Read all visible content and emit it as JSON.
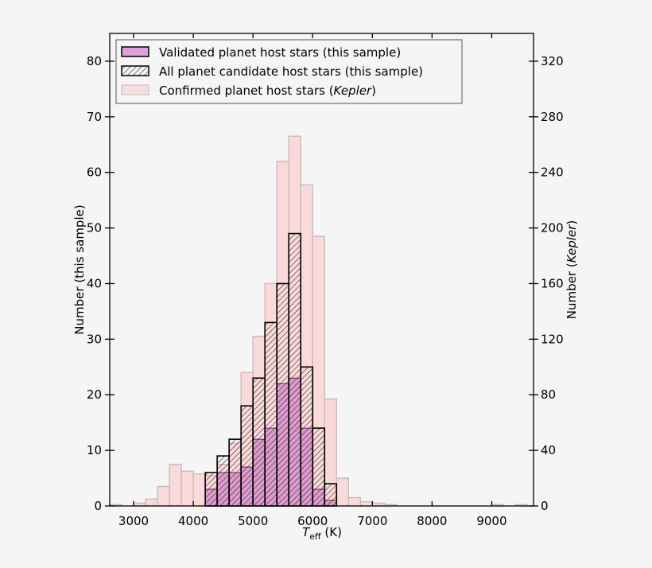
{
  "chart_data": {
    "type": "bar",
    "subtype": "overlaid-histogram",
    "xlabel": "T",
    "xlabel_sub": "eff",
    "xlabel_unit": " (K)",
    "ylabel_left": "Number (this sample)",
    "ylabel_right_prefix": "Number (",
    "ylabel_right_italic": "Kepler",
    "ylabel_right_suffix": ")",
    "xlim": [
      2600,
      9700
    ],
    "ylim_left": [
      0,
      85
    ],
    "ylim_right": [
      0,
      340
    ],
    "x_ticks": [
      "3000",
      "4000",
      "5000",
      "6000",
      "7000",
      "8000",
      "9000"
    ],
    "y_ticks_left": [
      "0",
      "10",
      "20",
      "30",
      "40",
      "50",
      "60",
      "70",
      "80"
    ],
    "y_ticks_right": [
      "0",
      "40",
      "80",
      "120",
      "160",
      "200",
      "240",
      "280",
      "320"
    ],
    "bin_width": 200,
    "grid": false,
    "legend_position": "top-left",
    "series": [
      {
        "name": "Confirmed planet host stars (Kepler)",
        "legend_prefix": "Confirmed planet host stars (",
        "legend_italic": "Kepler",
        "legend_suffix": ")",
        "axis": "right",
        "color": "#f9d6d6",
        "bin_starts": [
          2600,
          2800,
          3000,
          3200,
          3400,
          3600,
          3800,
          4000,
          4200,
          4400,
          4600,
          4800,
          5000,
          5200,
          5400,
          5600,
          5800,
          6000,
          6200,
          6400,
          6600,
          6800,
          7000,
          7200,
          9000,
          9400
        ],
        "values": [
          1,
          0,
          2,
          5,
          14,
          30,
          25,
          23,
          22,
          30,
          45,
          96,
          122,
          160,
          248,
          266,
          231,
          194,
          77,
          20,
          6,
          3,
          2,
          1,
          1,
          1
        ]
      },
      {
        "name": "Validated planet host stars (this sample)",
        "legend": "Validated planet host stars (this sample)",
        "axis": "left",
        "color": "#dda0dd",
        "bin_starts": [
          4200,
          4400,
          4600,
          4800,
          5000,
          5200,
          5400,
          5600,
          5800,
          6000,
          6200
        ],
        "values": [
          3,
          6,
          6,
          7,
          12,
          14,
          22,
          23,
          14,
          3,
          1
        ]
      },
      {
        "name": "All planet candidate host stars (this sample)",
        "legend": "All planet candidate host stars (this sample)",
        "axis": "left",
        "color": "#000000",
        "hatch": true,
        "bin_starts": [
          4200,
          4400,
          4600,
          4800,
          5000,
          5200,
          5400,
          5600,
          5800,
          6000,
          6200
        ],
        "values": [
          6,
          9,
          12,
          18,
          23,
          33,
          40,
          49,
          25,
          14,
          4
        ]
      }
    ]
  }
}
